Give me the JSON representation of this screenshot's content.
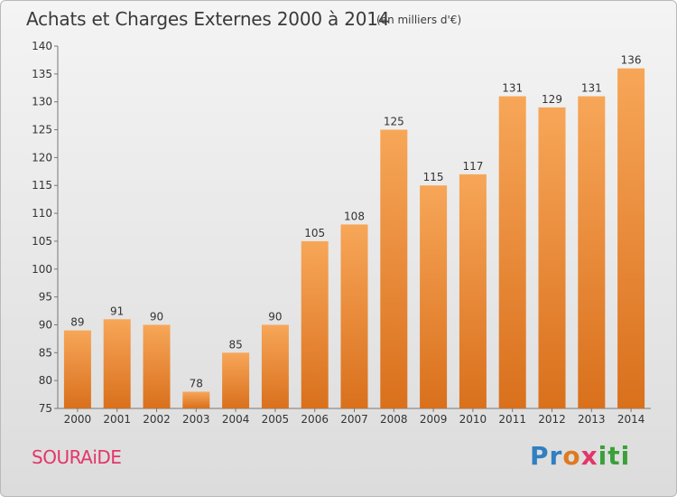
{
  "header": {
    "title": "Achats et Charges Externes 2000 à 2014",
    "subtitle": "(en milliers d'€)"
  },
  "footer": {
    "commune": "SOURAiDE",
    "logo": {
      "letters": [
        "P",
        "r",
        "o",
        "x",
        "i",
        "t",
        "i"
      ],
      "colors": [
        "#2f7fc1",
        "#2f7fc1",
        "#e07a1f",
        "#e2366a",
        "#3aa03a",
        "#3aa03a",
        "#3aa03a"
      ]
    }
  },
  "chart_data": {
    "type": "bar",
    "categories": [
      "2000",
      "2001",
      "2002",
      "2003",
      "2004",
      "2005",
      "2006",
      "2007",
      "2008",
      "2009",
      "2010",
      "2011",
      "2012",
      "2013",
      "2014"
    ],
    "values": [
      89,
      91,
      90,
      78,
      85,
      90,
      105,
      108,
      125,
      115,
      117,
      131,
      129,
      131,
      136
    ],
    "title": "Achats et Charges Externes 2000 à 2014",
    "subtitle": "(en milliers d'€)",
    "ylim": [
      75,
      140
    ],
    "yticks": [
      75,
      80,
      85,
      90,
      95,
      100,
      105,
      110,
      115,
      120,
      125,
      130,
      135,
      140
    ],
    "grid": false,
    "bar_color_top": "#f7a658",
    "bar_color_bottom": "#d9701c"
  }
}
